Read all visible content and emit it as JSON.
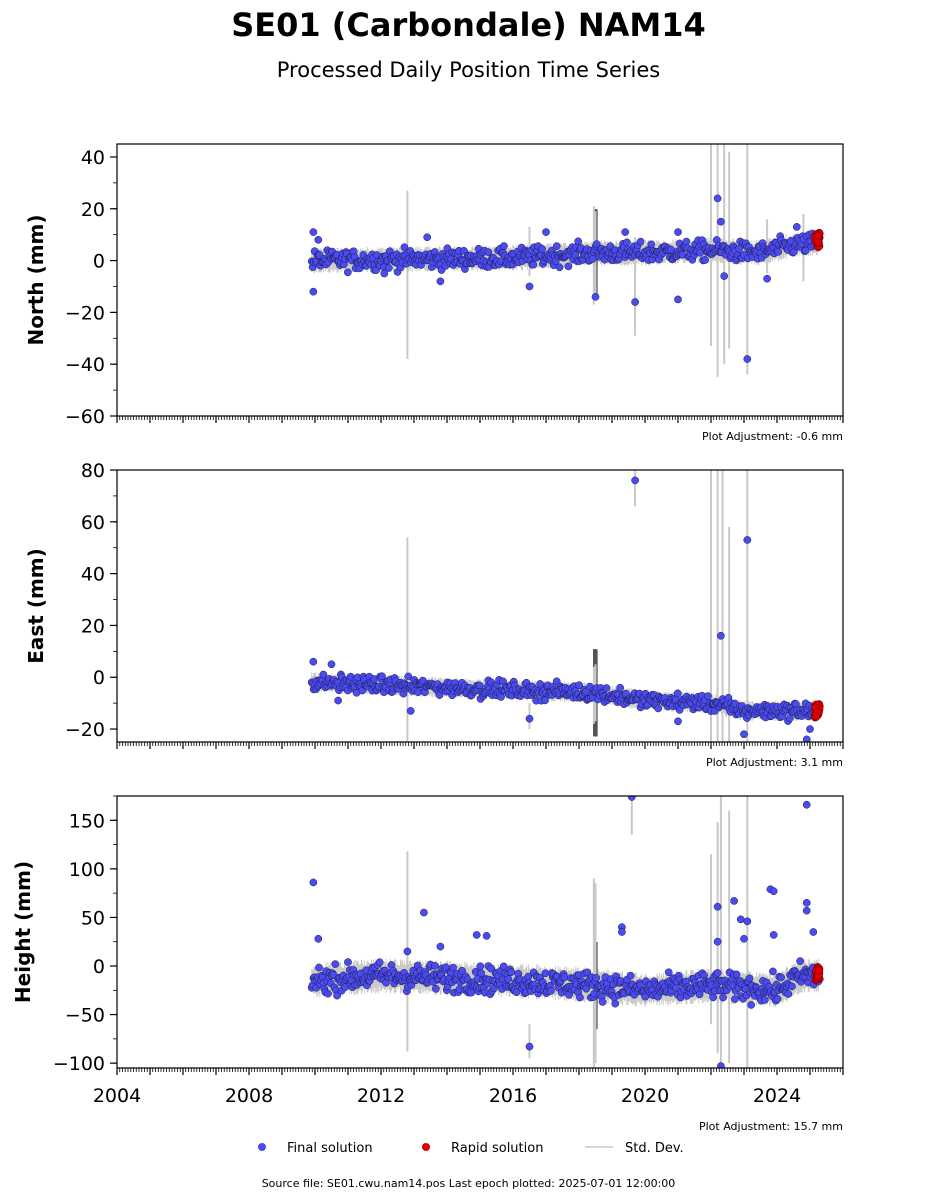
{
  "title": "SE01 (Carbondale) NAM14",
  "subtitle": "Processed Daily Position Time Series",
  "footer": "Source file: SE01.cwu.nam14.pos  Last epoch plotted: 2025-07-01 12:00:00",
  "colors": {
    "final": "#4b4bf0",
    "rapid": "#e00000",
    "std": "#c8c8c8",
    "edge": "#1a1a4a"
  },
  "legend": {
    "final": "Final solution",
    "rapid": "Rapid solution",
    "std": "Std. Dev."
  },
  "chart_data": [
    {
      "type": "scatter",
      "ylabel": "North (mm)",
      "adjustment": "Plot Adjustment: -0.6 mm",
      "xlim": [
        2004,
        2026
      ],
      "ylim": [
        -60,
        45
      ],
      "yticks": [
        40,
        20,
        0,
        -20,
        -40,
        -60
      ],
      "xticks": [
        2004,
        2008,
        2012,
        2016,
        2020,
        2024
      ],
      "base": {
        "start": 2009.9,
        "end": 2025.25,
        "trend": [
          [
            2009.9,
            0
          ],
          [
            2012.5,
            0.5
          ],
          [
            2016,
            1
          ],
          [
            2018.5,
            3
          ],
          [
            2020,
            3
          ],
          [
            2022,
            4
          ],
          [
            2023.5,
            3
          ],
          [
            2024.5,
            6
          ],
          [
            2025.3,
            7
          ]
        ],
        "noise": 2.5,
        "count": 520
      },
      "outliers": [
        [
          2009.95,
          11
        ],
        [
          2009.95,
          -12
        ],
        [
          2010.1,
          8
        ],
        [
          2012.1,
          -5
        ],
        [
          2013.4,
          9
        ],
        [
          2013.8,
          -8
        ],
        [
          2016.5,
          -10
        ],
        [
          2017,
          11
        ],
        [
          2018.5,
          -14
        ],
        [
          2019.4,
          11
        ],
        [
          2019.7,
          -16
        ],
        [
          2021.0,
          -15
        ],
        [
          2021.0,
          11
        ],
        [
          2022.2,
          24
        ],
        [
          2022.3,
          15
        ],
        [
          2022.4,
          -6
        ],
        [
          2023.1,
          -38
        ],
        [
          2023.7,
          -7
        ],
        [
          2024.6,
          13
        ]
      ],
      "rapid": {
        "start": 2025.15,
        "end": 2025.3,
        "center": 8,
        "spread": 3,
        "count": 25
      },
      "stdbars": [
        [
          2012.8,
          -38,
          27
        ],
        [
          2018.45,
          -17,
          21
        ],
        [
          2018.5,
          -15,
          19
        ],
        [
          2019.7,
          -29,
          9
        ],
        [
          2022.0,
          -33,
          45
        ],
        [
          2022.2,
          -45,
          45
        ],
        [
          2022.4,
          -40,
          45
        ],
        [
          2022.55,
          -34,
          42
        ],
        [
          2023.1,
          -44,
          45
        ],
        [
          2023.7,
          -5,
          16
        ],
        [
          2016.5,
          -6,
          13
        ],
        [
          2024.8,
          -8,
          18
        ]
      ]
    },
    {
      "type": "scatter",
      "ylabel": "East (mm)",
      "adjustment": "Plot Adjustment: 3.1 mm",
      "xlim": [
        2004,
        2026
      ],
      "ylim": [
        -25,
        80
      ],
      "yticks": [
        80,
        60,
        40,
        20,
        0,
        -20
      ],
      "xticks": [
        2004,
        2008,
        2012,
        2016,
        2020,
        2024
      ],
      "base": {
        "start": 2009.9,
        "end": 2025.25,
        "trend": [
          [
            2009.9,
            -2
          ],
          [
            2012,
            -3
          ],
          [
            2016,
            -5
          ],
          [
            2018.5,
            -6
          ],
          [
            2020,
            -9
          ],
          [
            2022,
            -10
          ],
          [
            2023,
            -13
          ],
          [
            2025.3,
            -13
          ]
        ],
        "noise": 2.0,
        "count": 520
      },
      "outliers": [
        [
          2009.95,
          6
        ],
        [
          2010.5,
          5
        ],
        [
          2010.7,
          -9
        ],
        [
          2012.9,
          -13
        ],
        [
          2016.5,
          -16
        ],
        [
          2019.7,
          76
        ],
        [
          2022.3,
          16
        ],
        [
          2023.1,
          53
        ],
        [
          2023.0,
          -22
        ],
        [
          2024.9,
          -24
        ],
        [
          2025.0,
          -20
        ],
        [
          2021.0,
          -17
        ]
      ],
      "rapid": {
        "start": 2025.15,
        "end": 2025.3,
        "center": -13,
        "spread": 3,
        "count": 25
      },
      "stdbars": [
        [
          2012.8,
          -25,
          54
        ],
        [
          2016.5,
          -20,
          -10
        ],
        [
          2018.45,
          -18,
          4
        ],
        [
          2018.5,
          -17,
          5
        ],
        [
          2019.7,
          66,
          80
        ],
        [
          2022.0,
          -25,
          80
        ],
        [
          2022.2,
          -25,
          80
        ],
        [
          2022.35,
          -25,
          80
        ],
        [
          2022.55,
          -25,
          58
        ],
        [
          2023.1,
          -25,
          80
        ]
      ]
    },
    {
      "type": "scatter",
      "ylabel": "Height (mm)",
      "adjustment": "Plot Adjustment: 15.7 mm",
      "xlim": [
        2004,
        2026
      ],
      "ylim": [
        -105,
        175
      ],
      "yticks": [
        150,
        100,
        50,
        0,
        -50,
        -100
      ],
      "xticks": [
        2004,
        2008,
        2012,
        2016,
        2020,
        2024
      ],
      "base": {
        "start": 2009.9,
        "end": 2025.25,
        "trend": [
          [
            2009.9,
            -15
          ],
          [
            2012,
            -10
          ],
          [
            2016,
            -15
          ],
          [
            2018.5,
            -20
          ],
          [
            2020,
            -25
          ],
          [
            2022,
            -20
          ],
          [
            2024,
            -25
          ],
          [
            2024.7,
            -10
          ],
          [
            2025.3,
            -10
          ]
        ],
        "noise": 9,
        "count": 560
      },
      "outliers": [
        [
          2009.95,
          86
        ],
        [
          2010.1,
          28
        ],
        [
          2012.8,
          15
        ],
        [
          2013.3,
          55
        ],
        [
          2013.8,
          20
        ],
        [
          2014.9,
          32
        ],
        [
          2015.2,
          31
        ],
        [
          2016.5,
          -83
        ],
        [
          2019.3,
          40
        ],
        [
          2019.3,
          35
        ],
        [
          2019.6,
          174
        ],
        [
          2022.2,
          61
        ],
        [
          2022.2,
          25
        ],
        [
          2022.3,
          -103
        ],
        [
          2022.7,
          67
        ],
        [
          2022.9,
          48
        ],
        [
          2023.0,
          28
        ],
        [
          2023.1,
          46
        ],
        [
          2023.8,
          79
        ],
        [
          2023.9,
          77
        ],
        [
          2023.9,
          32
        ],
        [
          2024.9,
          166
        ],
        [
          2024.9,
          65
        ],
        [
          2024.9,
          57
        ],
        [
          2025.1,
          35
        ]
      ],
      "rapid": {
        "start": 2025.15,
        "end": 2025.3,
        "center": -8,
        "spread": 7,
        "count": 25
      },
      "stdbars": [
        [
          2012.8,
          -88,
          118
        ],
        [
          2016.5,
          -95,
          -60
        ],
        [
          2018.45,
          -105,
          90
        ],
        [
          2018.5,
          -100,
          85
        ],
        [
          2019.6,
          135,
          175
        ],
        [
          2022.0,
          -60,
          115
        ],
        [
          2022.2,
          -90,
          148
        ],
        [
          2022.3,
          -105,
          175
        ],
        [
          2022.55,
          -100,
          160
        ],
        [
          2023.1,
          -105,
          175
        ]
      ]
    }
  ]
}
